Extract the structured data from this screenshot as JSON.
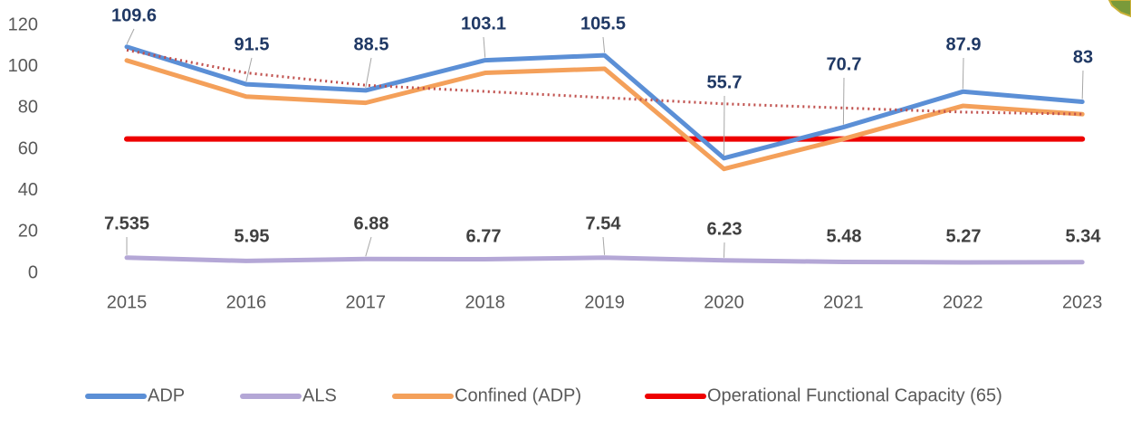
{
  "chart_data": {
    "type": "line",
    "categories": [
      "2015",
      "2016",
      "2017",
      "2018",
      "2019",
      "2020",
      "2021",
      "2022",
      "2023"
    ],
    "ylim": [
      0,
      120
    ],
    "yticks": [
      0,
      20,
      40,
      60,
      80,
      100,
      120
    ],
    "grid": false,
    "legend": "bottom",
    "series": [
      {
        "name": "ADP",
        "color": "#5b8fd6",
        "values": [
          109.6,
          91.5,
          88.5,
          103.1,
          105.5,
          55.7,
          70.7,
          87.9,
          83
        ],
        "labels_color": "#1f3864"
      },
      {
        "name": "ALS",
        "color": "#b4a7d6",
        "values": [
          7.535,
          5.95,
          6.88,
          6.77,
          7.54,
          6.23,
          5.48,
          5.27,
          5.34
        ],
        "labels_color": "#404040"
      },
      {
        "name": "Confined (ADP)",
        "color": "#f4a05a",
        "values": [
          103,
          85.5,
          82.5,
          97,
          99,
          50.5,
          65,
          81,
          77
        ]
      },
      {
        "name": "Operational Functional Capacity (65)",
        "color": "#ee0000",
        "values": [
          65,
          65,
          65,
          65,
          65,
          65,
          65,
          65,
          65
        ]
      }
    ],
    "trendline": {
      "color": "#c0504d",
      "values": [
        108,
        97,
        91,
        88,
        85,
        82,
        80,
        78,
        77
      ]
    }
  }
}
